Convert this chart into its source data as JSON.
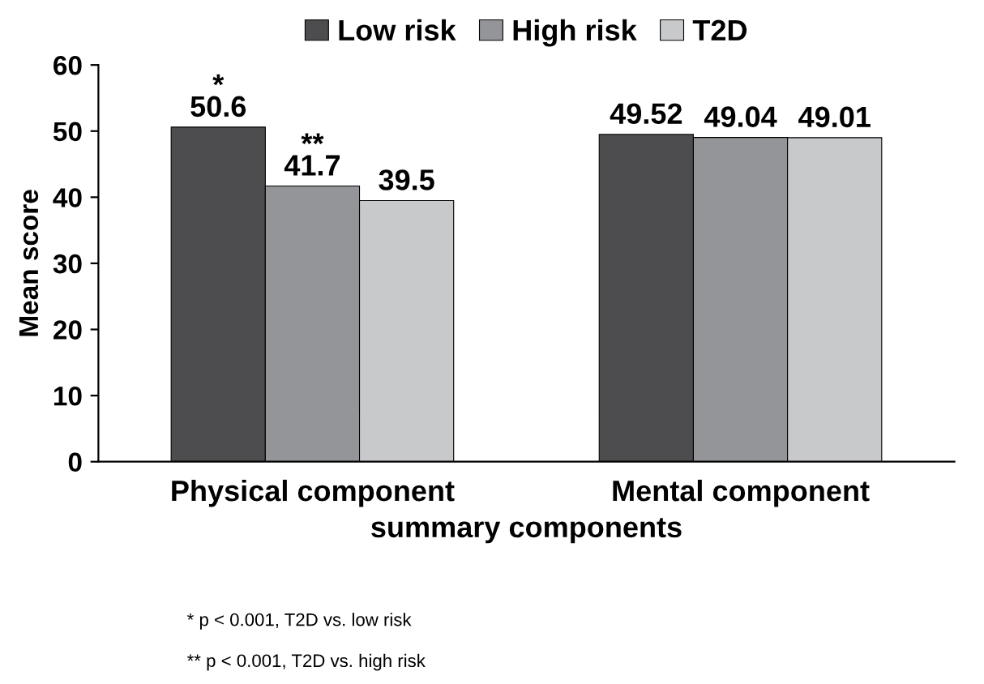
{
  "chart_data": {
    "type": "bar",
    "xlabel": "summary components",
    "ylabel": "Mean score",
    "categories": [
      "Physical component",
      "Mental component"
    ],
    "series": [
      {
        "name": "Low risk",
        "color": "#4d4d4f",
        "values": [
          50.6,
          49.52
        ],
        "value_labels": [
          "*\n50.6",
          "49.52"
        ]
      },
      {
        "name": "High risk",
        "color": "#939598",
        "values": [
          41.7,
          49.04
        ],
        "value_labels": [
          "**\n41.7",
          "49.04"
        ]
      },
      {
        "name": "T2D",
        "color": "#c8c9cb",
        "values": [
          39.5,
          49.01
        ],
        "value_labels": [
          "39.5",
          "49.01"
        ]
      }
    ],
    "ylim": [
      0,
      60
    ],
    "yticks": [
      0,
      10,
      20,
      30,
      40,
      50,
      60
    ],
    "grid": false,
    "legend": "top",
    "annotations": [
      "* p < 0.001, T2D vs. low risk",
      "** p < 0.001, T2D vs. high risk"
    ]
  }
}
